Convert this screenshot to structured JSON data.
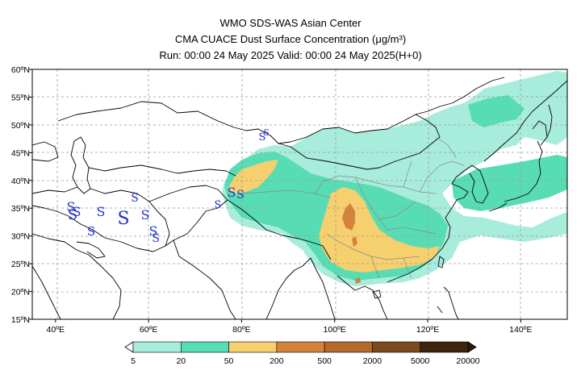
{
  "header": {
    "line1": "WMO SDS-WAS Asian Center",
    "line2": "CMA CUACE Dust Surface Concentration (μg/m³)",
    "line3": "Run: 00:00 24 May 2025    Valid: 00:00 24 May 2025(H+0)"
  },
  "axes": {
    "lon_ticks": [
      "40ºE",
      "60ºE",
      "80ºE",
      "100ºE",
      "120ºE",
      "140ºE"
    ],
    "lon_values": [
      40,
      60,
      80,
      100,
      120,
      140
    ],
    "lat_ticks": [
      "60ºN",
      "55ºN",
      "50ºN",
      "45ºN",
      "40ºN",
      "35ºN",
      "30ºN",
      "25ºN",
      "20ºN",
      "15ºN"
    ],
    "lat_values": [
      60,
      55,
      50,
      45,
      40,
      35,
      30,
      25,
      20,
      15
    ],
    "lon_range": [
      35,
      150
    ],
    "lat_range": [
      15,
      60
    ],
    "grid": true
  },
  "legend": {
    "levels": [
      "5",
      "20",
      "50",
      "200",
      "500",
      "2000",
      "5000",
      "20000"
    ],
    "colors": [
      "#a8ecdc",
      "#58dcb4",
      "#f6cf6e",
      "#d4823c",
      "#b46a2a",
      "#7c4a1c",
      "#3c2410"
    ],
    "arrow_low_color": "#ffffff",
    "arrow_high_color": "#2a1808"
  },
  "dust_symbol": "S",
  "map_colors": {
    "land_border": "#000000",
    "province_border": "#888888",
    "sea": "#ffffff"
  }
}
